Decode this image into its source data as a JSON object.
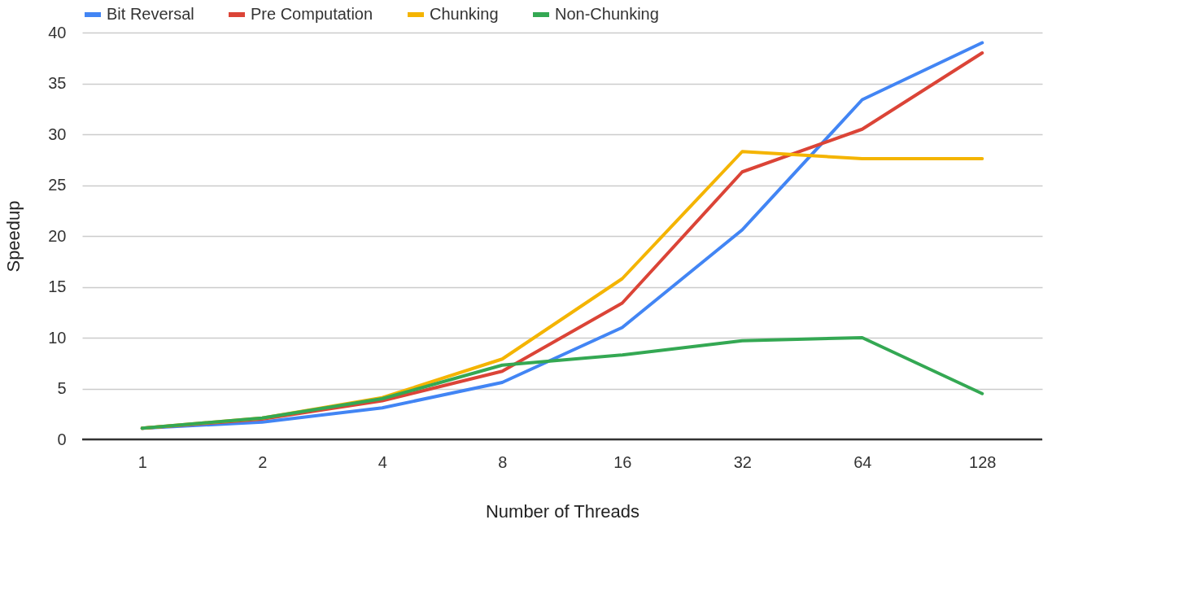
{
  "chart_data": {
    "type": "line",
    "xlabel": "Number of Threads",
    "ylabel": "Speedup",
    "categories": [
      "1",
      "2",
      "4",
      "8",
      "16",
      "32",
      "64",
      "128"
    ],
    "series": [
      {
        "name": "Bit Reversal",
        "color": "#4285f4",
        "values": [
          1.1,
          1.7,
          3.1,
          5.6,
          11.0,
          20.6,
          33.4,
          39.0
        ]
      },
      {
        "name": "Pre Computation",
        "color": "#db4437",
        "values": [
          1.1,
          2.0,
          3.8,
          6.7,
          13.4,
          26.3,
          30.5,
          38.0
        ]
      },
      {
        "name": "Chunking",
        "color": "#f4b400",
        "values": [
          1.1,
          2.1,
          4.1,
          7.9,
          15.8,
          28.3,
          27.6,
          27.6
        ]
      },
      {
        "name": "Non-Chunking",
        "color": "#34a853",
        "values": [
          1.1,
          2.1,
          4.0,
          7.3,
          8.3,
          9.7,
          10.0,
          4.5
        ]
      }
    ],
    "ylim": [
      0,
      40
    ],
    "yticks": [
      0,
      5,
      10,
      15,
      20,
      25,
      30,
      35,
      40
    ],
    "grid": "y",
    "legend": "top",
    "marker": "none",
    "line_style": "solid"
  }
}
